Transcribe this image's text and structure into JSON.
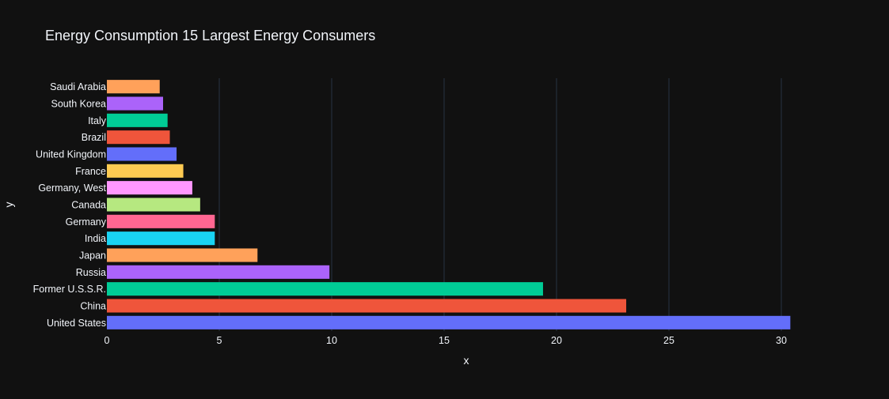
{
  "chart_data": {
    "type": "bar",
    "orientation": "horizontal",
    "title": "Energy Consumption 15 Largest Energy Consumers",
    "xlabel": "x",
    "ylabel": "y",
    "xlim": [
      0,
      30.5
    ],
    "xticks": [
      0,
      5,
      10,
      15,
      20,
      25,
      30
    ],
    "grid": true,
    "legend": "none",
    "categories": [
      "United States",
      "China",
      "Former U.S.S.R.",
      "Russia",
      "Japan",
      "India",
      "Germany",
      "Canada",
      "Germany, West",
      "France",
      "United Kingdom",
      "Brazil",
      "Italy",
      "South Korea",
      "Saudi Arabia"
    ],
    "values": [
      30.4,
      23.1,
      19.4,
      9.9,
      6.7,
      4.8,
      4.8,
      4.15,
      3.8,
      3.4,
      3.1,
      2.8,
      2.7,
      2.5,
      2.35
    ],
    "colors": [
      "#636efa",
      "#ef553b",
      "#00cc96",
      "#ab63fa",
      "#ffa15a",
      "#19d3f3",
      "#ff6692",
      "#b6e880",
      "#ff97ff",
      "#fecb52",
      "#636efa",
      "#ef553b",
      "#00cc96",
      "#ab63fa",
      "#ffa15a"
    ]
  },
  "theme": {
    "background": "#111111",
    "grid_color": "#283442",
    "text_color": "#f2f5fa"
  }
}
